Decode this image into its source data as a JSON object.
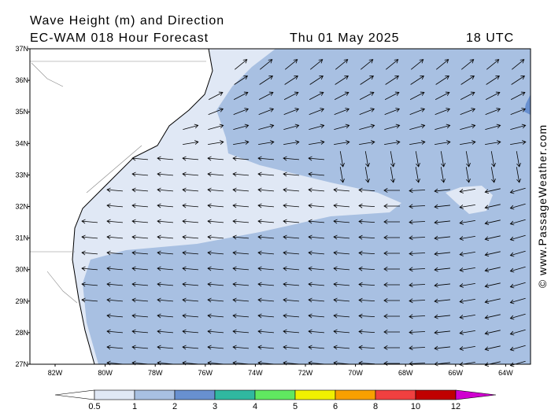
{
  "title": "Wave Height (m) and Direction",
  "subtitle": "EC-WAM 018 Hour Forecast",
  "date": "Thu 01 May 2025",
  "time": "18 UTC",
  "latitude_labels": [
    "37N",
    "36N",
    "35N",
    "34N",
    "33N",
    "32N",
    "31N",
    "30N",
    "29N",
    "28N",
    "27N"
  ],
  "longitude_labels": [
    "82W",
    "80W",
    "78W",
    "76W",
    "74W",
    "72W",
    "70W",
    "68W",
    "66W",
    "64W"
  ],
  "colorbar": {
    "ticks": [
      0.5,
      1,
      2,
      3,
      4,
      5,
      6,
      8,
      10,
      12
    ],
    "colors": [
      "#ffffff",
      "#e0e8f5",
      "#a8c0e2",
      "#6890d0",
      "#30b8a0",
      "#60e860",
      "#f0f000",
      "#f8a000",
      "#f04040",
      "#c00000",
      "#d000d0"
    ]
  },
  "credit": "© www.PassageWeather.com"
}
